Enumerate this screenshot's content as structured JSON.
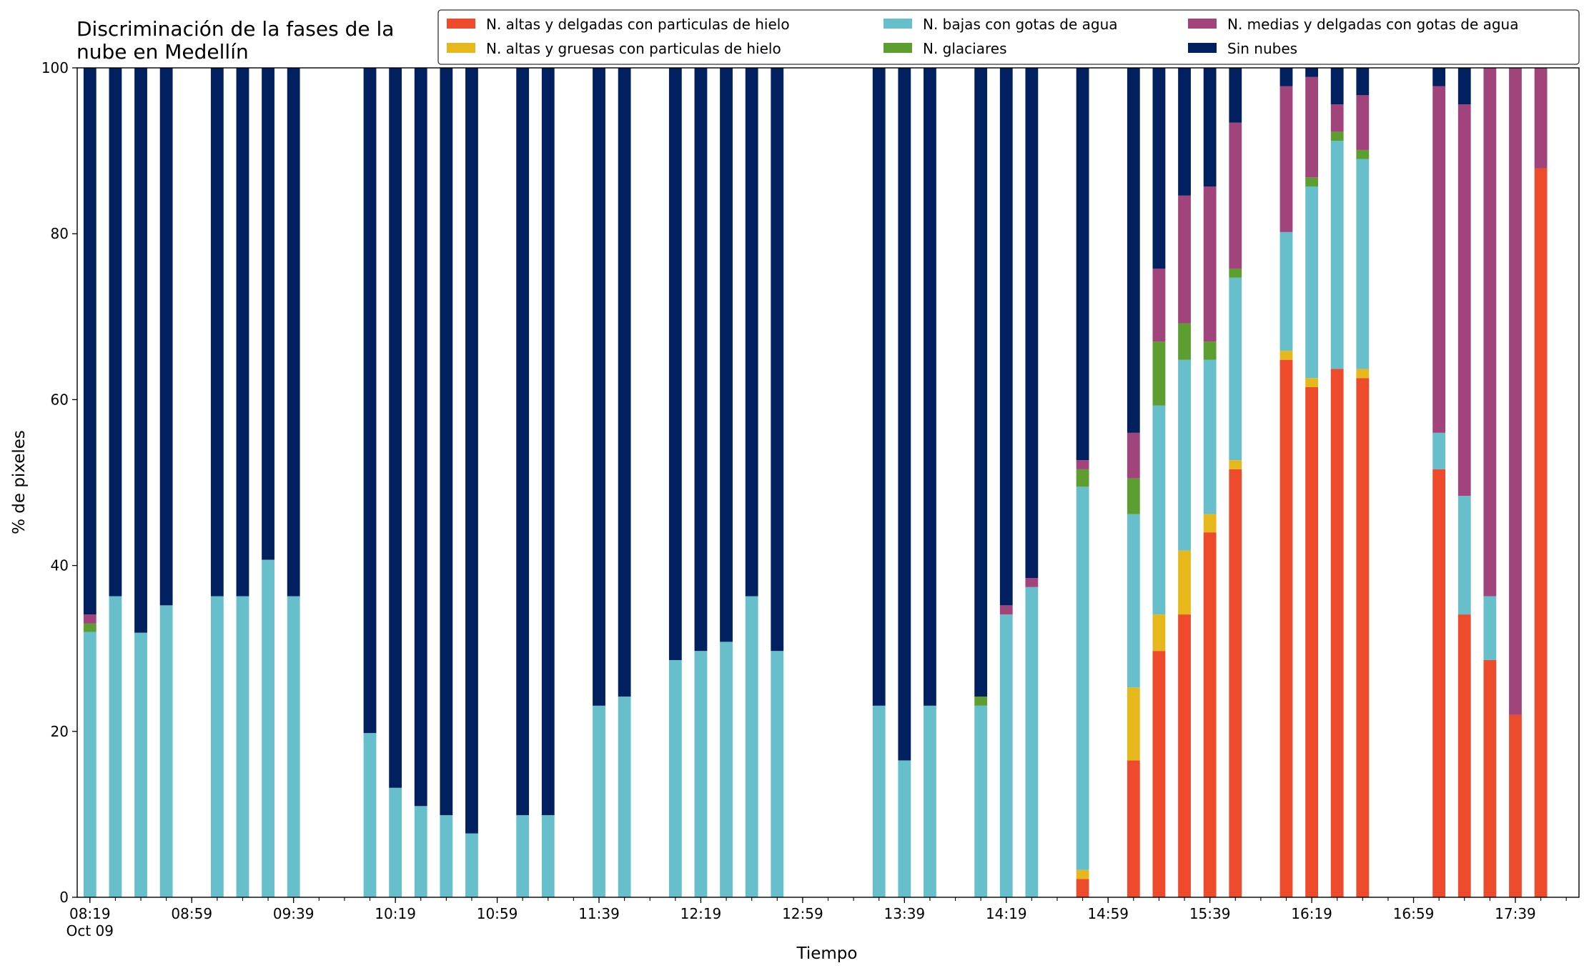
{
  "chart_data": {
    "type": "stacked_bar",
    "title": "Discriminación de la fases de la\nnube en Medellín",
    "xlabel": "Tiempo",
    "ylabel": "% de pixeles",
    "x": [
      "08:19",
      "08:29",
      "08:39",
      "08:49",
      "09:09",
      "09:19",
      "09:29",
      "09:39",
      "10:09",
      "10:19",
      "10:29",
      "10:39",
      "10:49",
      "11:09",
      "11:19",
      "11:39",
      "11:49",
      "12:09",
      "12:19",
      "12:29",
      "12:39",
      "12:49",
      "13:29",
      "13:39",
      "13:49",
      "14:09",
      "14:19",
      "14:29",
      "14:49",
      "15:09",
      "15:19",
      "15:29",
      "15:39",
      "15:49",
      "16:09",
      "16:19",
      "16:29",
      "16:39",
      "17:09",
      "17:19",
      "17:29",
      "17:39",
      "17:49"
    ],
    "series": [
      {
        "name": "N. altas y delgadas con particulas de hielo",
        "color": "#ee4a2c",
        "values": [
          0,
          0,
          0,
          0,
          0,
          0,
          0,
          0,
          0,
          0,
          0,
          0,
          0,
          0,
          0,
          0,
          0,
          0,
          0,
          0,
          0,
          0,
          0,
          0,
          0,
          0,
          0,
          0,
          2.2,
          16.5,
          29.7,
          34.1,
          44,
          51.6,
          64.8,
          61.5,
          63.7,
          62.6,
          51.6,
          34.1,
          28.6,
          22,
          87.9
        ]
      },
      {
        "name": "N. altas y gruesas con particulas de hielo",
        "color": "#e6b81c",
        "values": [
          0,
          0,
          0,
          0,
          0,
          0,
          0,
          0,
          0,
          0,
          0,
          0,
          0,
          0,
          0,
          0,
          0,
          0,
          0,
          0,
          0,
          0,
          0,
          0,
          0,
          0,
          0,
          0,
          1.1,
          8.8,
          4.4,
          7.7,
          2.2,
          1.1,
          1.1,
          1.1,
          0,
          1.1,
          0,
          0,
          0,
          0,
          0
        ]
      },
      {
        "name": "N. bajas con gotas de agua",
        "color": "#66bfcb",
        "values": [
          32,
          36.3,
          31.9,
          35.2,
          36.3,
          36.3,
          40.7,
          36.3,
          19.8,
          13.2,
          11,
          9.9,
          7.7,
          9.9,
          9.9,
          23.1,
          24.2,
          28.6,
          29.7,
          30.8,
          36.3,
          29.7,
          23.1,
          16.5,
          23.1,
          23.1,
          34.1,
          37.4,
          46.2,
          20.9,
          25.2,
          23,
          18.6,
          22,
          14.3,
          23.1,
          27.5,
          25.3,
          4.4,
          14.3,
          7.7,
          0,
          0
        ]
      },
      {
        "name": "N. glaciares",
        "color": "#5c9e2f",
        "values": [
          1,
          0,
          0,
          0,
          0,
          0,
          0,
          0,
          0,
          0,
          0,
          0,
          0,
          0,
          0,
          0,
          0,
          0,
          0,
          0,
          0,
          0,
          0,
          0,
          0,
          1.1,
          0,
          0,
          2.1,
          4.3,
          7.7,
          4.4,
          2.2,
          1.1,
          0,
          1.1,
          1.1,
          1.1,
          0,
          0,
          0,
          0,
          0
        ]
      },
      {
        "name": "N. medias y delgadas con gotas de agua",
        "color": "#a2447c",
        "values": [
          1.1,
          0,
          0,
          0,
          0,
          0,
          0,
          0,
          0,
          0,
          0,
          0,
          0,
          0,
          0,
          0,
          0,
          0,
          0,
          0,
          0,
          0,
          0,
          0,
          0,
          0,
          1.1,
          1.1,
          1.1,
          5.5,
          8.8,
          15.4,
          18.7,
          17.6,
          17.6,
          12.1,
          3.3,
          6.6,
          41.8,
          47.2,
          63.7,
          78,
          12.1
        ]
      },
      {
        "name": "Sin nubes",
        "color": "#00205f",
        "values": [
          65.9,
          63.7,
          68.1,
          64.8,
          63.7,
          63.7,
          59.3,
          63.7,
          80.2,
          86.8,
          89,
          90.1,
          92.3,
          90.1,
          90.1,
          76.9,
          75.8,
          71.4,
          70.3,
          69.2,
          63.7,
          70.3,
          76.9,
          83.5,
          76.9,
          75.8,
          64.8,
          61.5,
          47.3,
          44,
          24.2,
          15.4,
          14.3,
          6.6,
          2.2,
          1.1,
          4.4,
          3.3,
          2.2,
          4.4,
          0,
          0,
          0
        ]
      }
    ],
    "xlim": [
      "08:14",
      "18:04"
    ],
    "xticks": [
      "08:19",
      "08:59",
      "09:39",
      "10:19",
      "10:59",
      "11:39",
      "12:19",
      "12:59",
      "13:39",
      "14:19",
      "14:59",
      "15:39",
      "16:19",
      "16:59",
      "17:39"
    ],
    "xtick_date": "Oct 09",
    "xticks_minor": [
      "08:19",
      "08:29",
      "08:39",
      "08:49",
      "08:59",
      "09:09",
      "09:19",
      "09:29",
      "09:39",
      "09:49",
      "09:59",
      "10:09",
      "10:19",
      "10:29",
      "10:39",
      "10:49",
      "10:59",
      "11:09",
      "11:19",
      "11:29",
      "11:39",
      "11:49",
      "11:59",
      "12:09",
      "12:19",
      "12:29",
      "12:39",
      "12:49",
      "12:59",
      "13:09",
      "13:19",
      "13:29",
      "13:39",
      "13:49",
      "13:59",
      "14:09",
      "14:19",
      "14:29",
      "14:39",
      "14:49",
      "14:59",
      "15:09",
      "15:19",
      "15:29",
      "15:39",
      "15:49",
      "15:59",
      "16:09",
      "16:19",
      "16:29",
      "16:39",
      "16:49",
      "16:59",
      "17:09",
      "17:19",
      "17:29",
      "17:39",
      "17:49",
      "17:59"
    ],
    "ylim": [
      0,
      100
    ],
    "yticks": [
      0,
      20,
      40,
      60,
      80,
      100
    ],
    "legend": "upper right"
  }
}
